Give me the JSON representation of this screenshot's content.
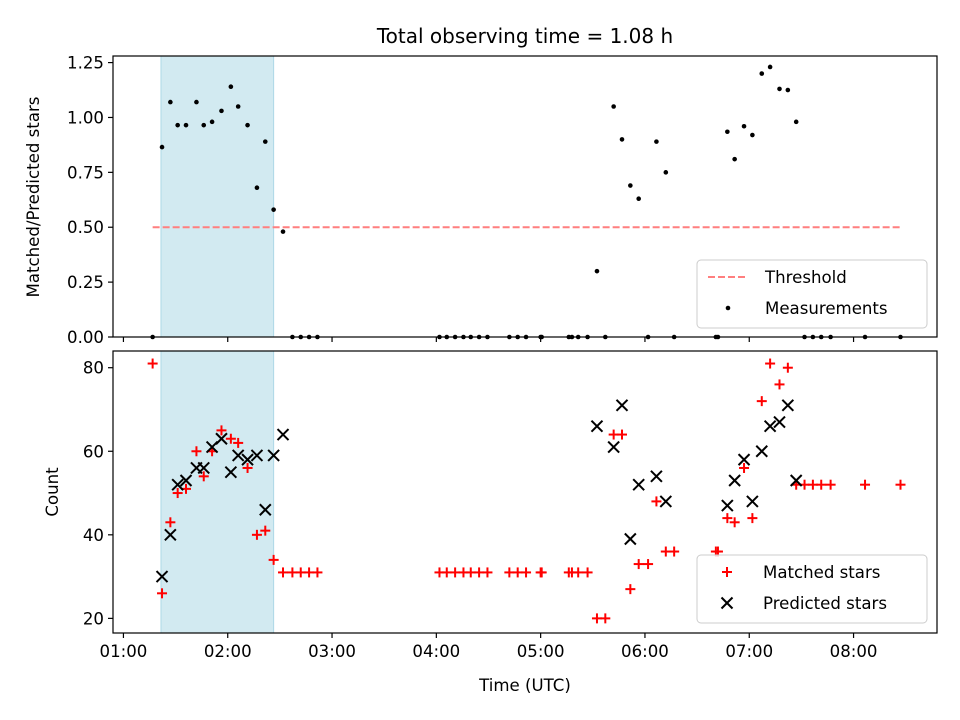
{
  "chart_data": {
    "type": "scatter",
    "title": "Total observing time = 1.08 h",
    "colors": {
      "measurement": "#000000",
      "threshold": "#ff7f7f",
      "matched": "#ff0000",
      "predicted": "#000000",
      "shade": "#add8e6"
    },
    "x_axis": {
      "label": "Time (UTC)",
      "ticks": [
        "01:00",
        "02:00",
        "03:00",
        "04:00",
        "05:00",
        "06:00",
        "07:00",
        "08:00"
      ],
      "tick_hours": [
        1,
        2,
        3,
        4,
        5,
        6,
        7,
        8
      ],
      "xlim": [
        0.9,
        8.8
      ]
    },
    "shaded_interval": [
      1.36,
      2.44
    ],
    "panels": [
      {
        "ylabel": "Matched/Predicted stars",
        "ylim": [
          0,
          1.28
        ],
        "yticks": [
          0.0,
          0.25,
          0.5,
          0.75,
          1.0,
          1.25
        ],
        "ytick_labels": [
          "0.00",
          "0.25",
          "0.50",
          "0.75",
          "1.00",
          "1.25"
        ],
        "threshold": {
          "value": 0.5,
          "x_range": [
            1.28,
            8.45
          ]
        },
        "legend": {
          "position": "lower right",
          "entries": [
            "Threshold",
            "Measurements"
          ]
        },
        "measurements": [
          [
            1.28,
            0
          ],
          [
            1.37,
            0.865
          ],
          [
            1.45,
            1.07
          ],
          [
            1.52,
            0.965
          ],
          [
            1.6,
            0.965
          ],
          [
            1.7,
            1.07
          ],
          [
            1.77,
            0.965
          ],
          [
            1.85,
            0.98
          ],
          [
            1.94,
            1.03
          ],
          [
            2.03,
            1.14
          ],
          [
            2.1,
            1.05
          ],
          [
            2.19,
            0.965
          ],
          [
            2.28,
            0.68
          ],
          [
            2.36,
            0.89
          ],
          [
            2.44,
            0.58
          ],
          [
            2.53,
            0.48
          ],
          [
            2.62,
            0
          ],
          [
            2.7,
            0
          ],
          [
            2.78,
            0
          ],
          [
            2.86,
            0
          ],
          [
            4.03,
            0
          ],
          [
            4.1,
            0
          ],
          [
            4.18,
            0
          ],
          [
            4.26,
            0
          ],
          [
            4.33,
            0
          ],
          [
            4.41,
            0
          ],
          [
            4.49,
            0
          ],
          [
            4.7,
            0
          ],
          [
            4.78,
            0
          ],
          [
            4.86,
            0
          ],
          [
            5.0,
            0
          ],
          [
            5.01,
            0
          ],
          [
            5.27,
            0
          ],
          [
            5.3,
            0
          ],
          [
            5.36,
            0
          ],
          [
            5.45,
            0
          ],
          [
            5.54,
            0.3
          ],
          [
            5.62,
            0
          ],
          [
            5.7,
            1.05
          ],
          [
            5.78,
            0.9
          ],
          [
            5.86,
            0.69
          ],
          [
            5.94,
            0.63
          ],
          [
            6.03,
            0
          ],
          [
            6.11,
            0.89
          ],
          [
            6.2,
            0.75
          ],
          [
            6.28,
            0
          ],
          [
            6.68,
            0
          ],
          [
            6.7,
            0
          ],
          [
            6.79,
            0.935
          ],
          [
            6.86,
            0.81
          ],
          [
            6.95,
            0.96
          ],
          [
            7.03,
            0.92
          ],
          [
            7.12,
            1.2
          ],
          [
            7.2,
            1.23
          ],
          [
            7.29,
            1.13
          ],
          [
            7.37,
            1.125
          ],
          [
            7.45,
            0.98
          ],
          [
            7.53,
            0
          ],
          [
            7.61,
            0
          ],
          [
            7.69,
            0
          ],
          [
            7.78,
            0
          ],
          [
            8.11,
            0
          ],
          [
            8.45,
            0
          ]
        ]
      },
      {
        "ylabel": "Count",
        "ylim": [
          16.5,
          84
        ],
        "yticks": [
          20,
          40,
          60,
          80
        ],
        "ytick_labels": [
          "20",
          "40",
          "60",
          "80"
        ],
        "legend": {
          "position": "lower right",
          "entries": [
            "Matched stars",
            "Predicted stars"
          ]
        },
        "matched_stars": [
          [
            1.28,
            81
          ],
          [
            1.37,
            26
          ],
          [
            1.45,
            43
          ],
          [
            1.52,
            50
          ],
          [
            1.6,
            51
          ],
          [
            1.7,
            60
          ],
          [
            1.77,
            54
          ],
          [
            1.85,
            60
          ],
          [
            1.94,
            65
          ],
          [
            2.03,
            63
          ],
          [
            2.1,
            62
          ],
          [
            2.19,
            56
          ],
          [
            2.28,
            40
          ],
          [
            2.36,
            41
          ],
          [
            2.44,
            34
          ],
          [
            2.53,
            31
          ],
          [
            2.62,
            31
          ],
          [
            2.7,
            31
          ],
          [
            2.78,
            31
          ],
          [
            2.86,
            31
          ],
          [
            4.03,
            31
          ],
          [
            4.1,
            31
          ],
          [
            4.18,
            31
          ],
          [
            4.26,
            31
          ],
          [
            4.33,
            31
          ],
          [
            4.41,
            31
          ],
          [
            4.49,
            31
          ],
          [
            4.7,
            31
          ],
          [
            4.78,
            31
          ],
          [
            4.86,
            31
          ],
          [
            5.0,
            31
          ],
          [
            5.01,
            31
          ],
          [
            5.27,
            31
          ],
          [
            5.3,
            31
          ],
          [
            5.36,
            31
          ],
          [
            5.45,
            31
          ],
          [
            5.54,
            20
          ],
          [
            5.62,
            20
          ],
          [
            5.7,
            64
          ],
          [
            5.78,
            64
          ],
          [
            5.86,
            27
          ],
          [
            5.94,
            33
          ],
          [
            6.03,
            33
          ],
          [
            6.11,
            48
          ],
          [
            6.2,
            36
          ],
          [
            6.28,
            36
          ],
          [
            6.68,
            36
          ],
          [
            6.7,
            36
          ],
          [
            6.79,
            44
          ],
          [
            6.86,
            43
          ],
          [
            6.95,
            56
          ],
          [
            7.03,
            44
          ],
          [
            7.12,
            72
          ],
          [
            7.2,
            81
          ],
          [
            7.29,
            76
          ],
          [
            7.37,
            80
          ],
          [
            7.45,
            52
          ],
          [
            7.53,
            52
          ],
          [
            7.61,
            52
          ],
          [
            7.69,
            52
          ],
          [
            7.78,
            52
          ],
          [
            8.11,
            52
          ],
          [
            8.45,
            52
          ]
        ],
        "predicted_stars": [
          [
            1.37,
            30
          ],
          [
            1.45,
            40
          ],
          [
            1.52,
            52
          ],
          [
            1.6,
            53
          ],
          [
            1.7,
            56
          ],
          [
            1.77,
            56
          ],
          [
            1.85,
            61
          ],
          [
            1.94,
            63
          ],
          [
            2.03,
            55
          ],
          [
            2.1,
            59
          ],
          [
            2.19,
            58
          ],
          [
            2.28,
            59
          ],
          [
            2.36,
            46
          ],
          [
            2.44,
            59
          ],
          [
            2.53,
            64
          ],
          [
            5.54,
            66
          ],
          [
            5.7,
            61
          ],
          [
            5.78,
            71
          ],
          [
            5.86,
            39
          ],
          [
            5.94,
            52
          ],
          [
            6.11,
            54
          ],
          [
            6.2,
            48
          ],
          [
            6.79,
            47
          ],
          [
            6.86,
            53
          ],
          [
            6.95,
            58
          ],
          [
            7.03,
            48
          ],
          [
            7.12,
            60
          ],
          [
            7.2,
            66
          ],
          [
            7.29,
            67
          ],
          [
            7.37,
            71
          ],
          [
            7.45,
            53
          ]
        ]
      }
    ]
  }
}
